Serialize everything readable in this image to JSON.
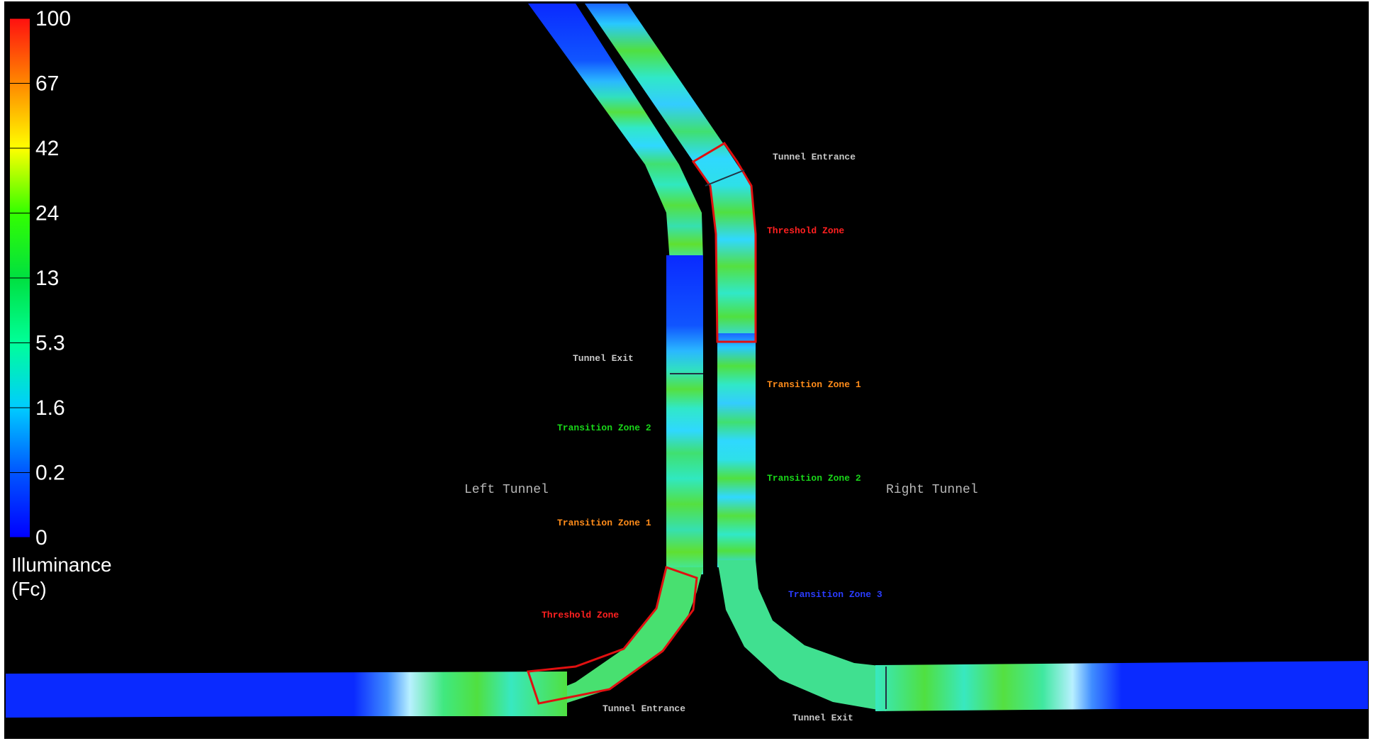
{
  "legend": {
    "ticks": [
      "100",
      "67",
      "42",
      "24",
      "13",
      "5.3",
      "1.6",
      "0.2",
      "0"
    ],
    "title_line1": "Illuminance",
    "title_line2": "(Fc)",
    "gradient_colors": [
      "#ff0000",
      "#ff7f00",
      "#ffff00",
      "#7fff00",
      "#00ff00",
      "#00ff7f",
      "#00ffff",
      "#007fff",
      "#0000ff"
    ]
  },
  "tunnels": {
    "left_name": "Left Tunnel",
    "right_name": "Right Tunnel"
  },
  "zones": {
    "left": {
      "exit": "Tunnel Exit",
      "transition2": "Transition Zone 2",
      "transition1": "Transition Zone 1",
      "threshold": "Threshold Zone",
      "entrance": "Tunnel Entrance"
    },
    "right": {
      "entrance": "Tunnel Entrance",
      "threshold": "Threshold Zone",
      "transition1": "Transition Zone 1",
      "transition2": "Transition Zone 2",
      "transition3": "Transition Zone 3",
      "exit": "Tunnel Exit"
    }
  },
  "colors": {
    "threshold": "#ff2020",
    "transition1": "#ff8c1a",
    "transition2": "#19d619",
    "transition3": "#2a3cff",
    "plain_label": "#c8c8c8",
    "zone_outline": "#e01010",
    "background": "#000000"
  }
}
